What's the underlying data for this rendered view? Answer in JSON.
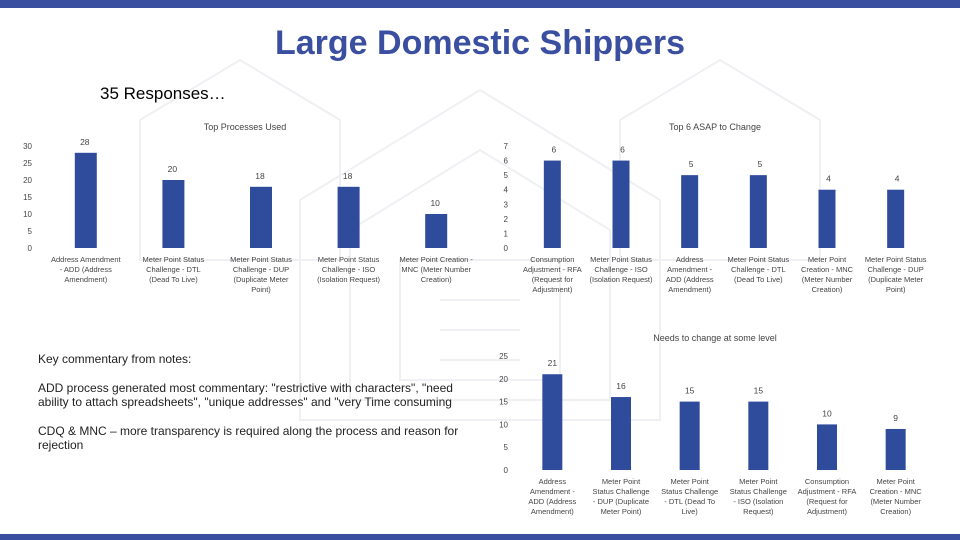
{
  "page": {
    "title": "Large Domestic Shippers",
    "subtitle": "35 Responses…"
  },
  "colors": {
    "title": "#3a4fa0",
    "bar": "#2f4b9c",
    "accent_bar": "#3f57a8"
  },
  "commentary": {
    "heading": "Key commentary from notes:",
    "paragraph_1": "ADD process generated most commentary: \"restrictive with characters\", \"need ability to attach spreadsheets\", \"unique addresses\" and \"very Time consuming",
    "paragraph_2": "CDQ & MNC – more transparency is required along the process and reason for rejection"
  },
  "chart_data": [
    {
      "type": "bar",
      "title": "Top Processes Used",
      "categories": [
        "Address Amendment - ADD (Address Amendment)",
        "Meter Point Status Challenge - DTL (Dead To Live)",
        "Meter Point Status Challenge - DUP (Duplicate Meter Point)",
        "Meter Point Status Challenge - ISO (Isolation Request)",
        "Meter Point Creation - MNC (Meter Number Creation)"
      ],
      "category_lines": [
        [
          "Address Amendment",
          "- ADD (Address",
          "Amendment)"
        ],
        [
          "Meter Point Status",
          "Challenge - DTL",
          "(Dead To Live)"
        ],
        [
          "Meter Point Status",
          "Challenge - DUP",
          "(Duplicate Meter",
          "Point)"
        ],
        [
          "Meter Point Status",
          "Challenge - ISO",
          "(Isolation Request)"
        ],
        [
          "Meter Point Creation -",
          "MNC (Meter Number",
          "Creation)"
        ]
      ],
      "values": [
        28,
        20,
        18,
        18,
        10
      ],
      "ylim": [
        0,
        30
      ],
      "yticks": [
        0,
        5,
        10,
        15,
        20,
        25,
        30
      ],
      "grid": false,
      "legend": "none"
    },
    {
      "type": "bar",
      "title": "Top 6 ASAP to Change",
      "categories": [
        "Consumption Adjustment - RFA (Request for Adjustment)",
        "Meter Point Status Challenge - ISO (Isolation Request)",
        "Address Amendment - ADD (Address Amendment)",
        "Meter Point Status Challenge - DTL (Dead To Live)",
        "Meter Point Creation - MNC (Meter Number Creation)",
        "Meter Point Status Challenge - DUP (Duplicate Meter Point)"
      ],
      "category_lines": [
        [
          "Consumption",
          "Adjustment - RFA",
          "(Request for",
          "Adjustment)"
        ],
        [
          "Meter Point Status",
          "Challenge - ISO",
          "(Isolation Request)"
        ],
        [
          "Address",
          "Amendment -",
          "ADD (Address",
          "Amendment)"
        ],
        [
          "Meter Point Status",
          "Challenge - DTL",
          "(Dead To Live)"
        ],
        [
          "Meter Point",
          "Creation - MNC",
          "(Meter Number",
          "Creation)"
        ],
        [
          "Meter Point Status",
          "Challenge - DUP",
          "(Duplicate Meter",
          "Point)"
        ]
      ],
      "values": [
        6,
        6,
        5,
        5,
        4,
        4
      ],
      "ylim": [
        0,
        7
      ],
      "yticks": [
        0,
        1,
        2,
        3,
        4,
        5,
        6,
        7
      ],
      "grid": false,
      "legend": "none"
    },
    {
      "type": "bar",
      "title": "Needs to change at some level",
      "categories": [
        "Address Amendment - ADD (Address Amendment)",
        "Meter Point Status Challenge - DUP (Duplicate Meter Point)",
        "Meter Point Status Challenge - DTL (Dead To Live)",
        "Meter Point Status Challenge - ISO (Isolation Request)",
        "Consumption Adjustment - RFA (Request for Adjustment)",
        "Meter Point Creation - MNC (Meter Number Creation)"
      ],
      "category_lines": [
        [
          "Address",
          "Amendment -",
          "ADD (Address",
          "Amendment)"
        ],
        [
          "Meter Point",
          "Status Challenge",
          "- DUP (Duplicate",
          "Meter Point)"
        ],
        [
          "Meter Point",
          "Status Challenge",
          "- DTL (Dead To",
          "Live)"
        ],
        [
          "Meter Point",
          "Status Challenge",
          "- ISO (Isolation",
          "Request)"
        ],
        [
          "Consumption",
          "Adjustment - RFA",
          "(Request for",
          "Adjustment)"
        ],
        [
          "Meter Point",
          "Creation - MNC",
          "(Meter Number",
          "Creation)"
        ]
      ],
      "values": [
        21,
        16,
        15,
        15,
        10,
        9
      ],
      "ylim": [
        0,
        25
      ],
      "yticks": [
        0,
        5,
        10,
        15,
        20,
        25
      ],
      "grid": false,
      "legend": "none"
    }
  ]
}
